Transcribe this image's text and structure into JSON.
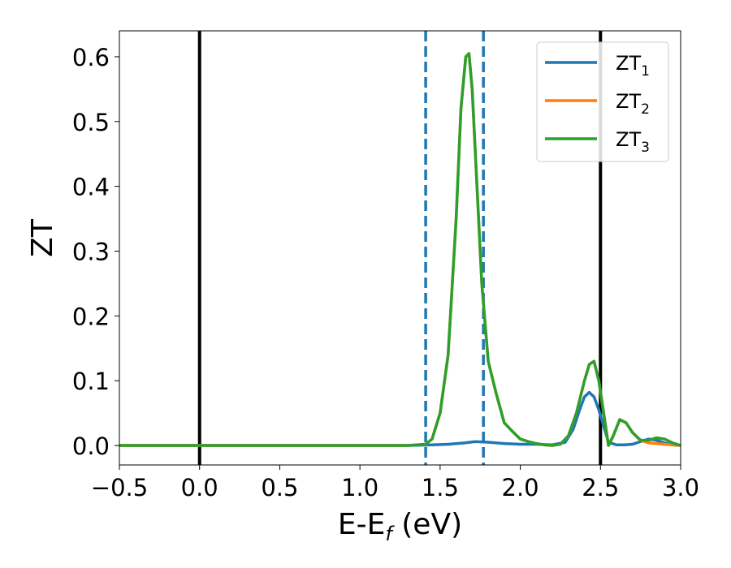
{
  "chart_data": {
    "type": "line",
    "xlabel": {
      "main": "E-E",
      "sub": "f",
      "suffix": " (eV)"
    },
    "ylabel": "ZT",
    "xlim": [
      -0.5,
      3.0
    ],
    "ylim": [
      -0.03,
      0.64
    ],
    "xticks": [
      -0.5,
      0.0,
      0.5,
      1.0,
      1.5,
      2.0,
      2.5,
      3.0
    ],
    "xtick_labels": [
      "−0.5",
      "0.0",
      "0.5",
      "1.0",
      "1.5",
      "2.0",
      "2.5",
      "3.0"
    ],
    "yticks": [
      0.0,
      0.1,
      0.2,
      0.3,
      0.4,
      0.5,
      0.6
    ],
    "ytick_labels": [
      "0.0",
      "0.1",
      "0.2",
      "0.3",
      "0.4",
      "0.5",
      "0.6"
    ],
    "grid": false,
    "legend_position": "top-right",
    "vertical_lines": [
      {
        "x": 0.0,
        "style": "solid",
        "color": "#000000"
      },
      {
        "x": 2.5,
        "style": "solid",
        "color": "#000000"
      },
      {
        "x": 1.41,
        "style": "dashed",
        "color": "#1f77b4"
      },
      {
        "x": 1.77,
        "style": "dashed",
        "color": "#1f77b4"
      }
    ],
    "series": [
      {
        "name": "ZT",
        "sub": "1",
        "color": "#1f77b4",
        "x": [
          -0.5,
          1.3,
          1.45,
          1.55,
          1.65,
          1.72,
          1.8,
          1.9,
          2.0,
          2.1,
          2.2,
          2.28,
          2.33,
          2.37,
          2.4,
          2.43,
          2.46,
          2.49,
          2.52,
          2.55,
          2.6,
          2.65,
          2.7,
          2.75,
          2.8,
          2.85,
          2.9,
          2.95,
          3.0
        ],
        "y": [
          0.0,
          0.0,
          0.001,
          0.002,
          0.004,
          0.006,
          0.005,
          0.003,
          0.002,
          0.002,
          0.001,
          0.005,
          0.025,
          0.055,
          0.075,
          0.082,
          0.075,
          0.055,
          0.03,
          0.005,
          0.001,
          0.001,
          0.002,
          0.006,
          0.01,
          0.008,
          0.004,
          0.001,
          0.0
        ]
      },
      {
        "name": "ZT",
        "sub": "2",
        "color": "#ff7f0e",
        "x": [
          -0.5,
          1.3,
          1.41,
          1.45,
          1.5,
          1.55,
          1.6,
          1.63,
          1.66,
          1.68,
          1.7,
          1.73,
          1.76,
          1.8,
          1.85,
          1.9,
          1.95,
          2.0,
          2.05,
          2.1,
          2.15,
          2.2,
          2.25,
          2.3,
          2.35,
          2.4,
          2.43,
          2.46,
          2.49,
          2.52,
          2.55,
          2.58,
          2.62,
          2.66,
          2.7,
          2.75,
          2.8,
          2.85,
          2.9,
          2.95,
          3.0
        ],
        "y": [
          0.0,
          0.0,
          0.002,
          0.01,
          0.05,
          0.14,
          0.35,
          0.52,
          0.6,
          0.605,
          0.55,
          0.4,
          0.25,
          0.13,
          0.08,
          0.035,
          0.022,
          0.01,
          0.006,
          0.003,
          0.001,
          0.0,
          0.002,
          0.015,
          0.05,
          0.1,
          0.125,
          0.13,
          0.1,
          0.05,
          0.0,
          0.015,
          0.04,
          0.035,
          0.02,
          0.008,
          0.004,
          0.003,
          0.002,
          0.001,
          0.0
        ]
      },
      {
        "name": "ZT",
        "sub": "3",
        "color": "#2ca02c",
        "x": [
          -0.5,
          1.3,
          1.41,
          1.45,
          1.5,
          1.55,
          1.6,
          1.63,
          1.66,
          1.68,
          1.7,
          1.73,
          1.76,
          1.8,
          1.85,
          1.9,
          1.95,
          2.0,
          2.05,
          2.1,
          2.15,
          2.2,
          2.25,
          2.3,
          2.35,
          2.4,
          2.43,
          2.46,
          2.49,
          2.52,
          2.55,
          2.58,
          2.62,
          2.66,
          2.7,
          2.75,
          2.8,
          2.85,
          2.9,
          2.95,
          3.0
        ],
        "y": [
          0.0,
          0.0,
          0.002,
          0.01,
          0.05,
          0.14,
          0.35,
          0.52,
          0.6,
          0.605,
          0.55,
          0.4,
          0.25,
          0.13,
          0.08,
          0.035,
          0.022,
          0.01,
          0.006,
          0.003,
          0.001,
          0.0,
          0.002,
          0.015,
          0.05,
          0.1,
          0.125,
          0.13,
          0.1,
          0.05,
          0.0,
          0.015,
          0.04,
          0.035,
          0.02,
          0.008,
          0.008,
          0.012,
          0.01,
          0.004,
          0.0
        ]
      }
    ]
  }
}
